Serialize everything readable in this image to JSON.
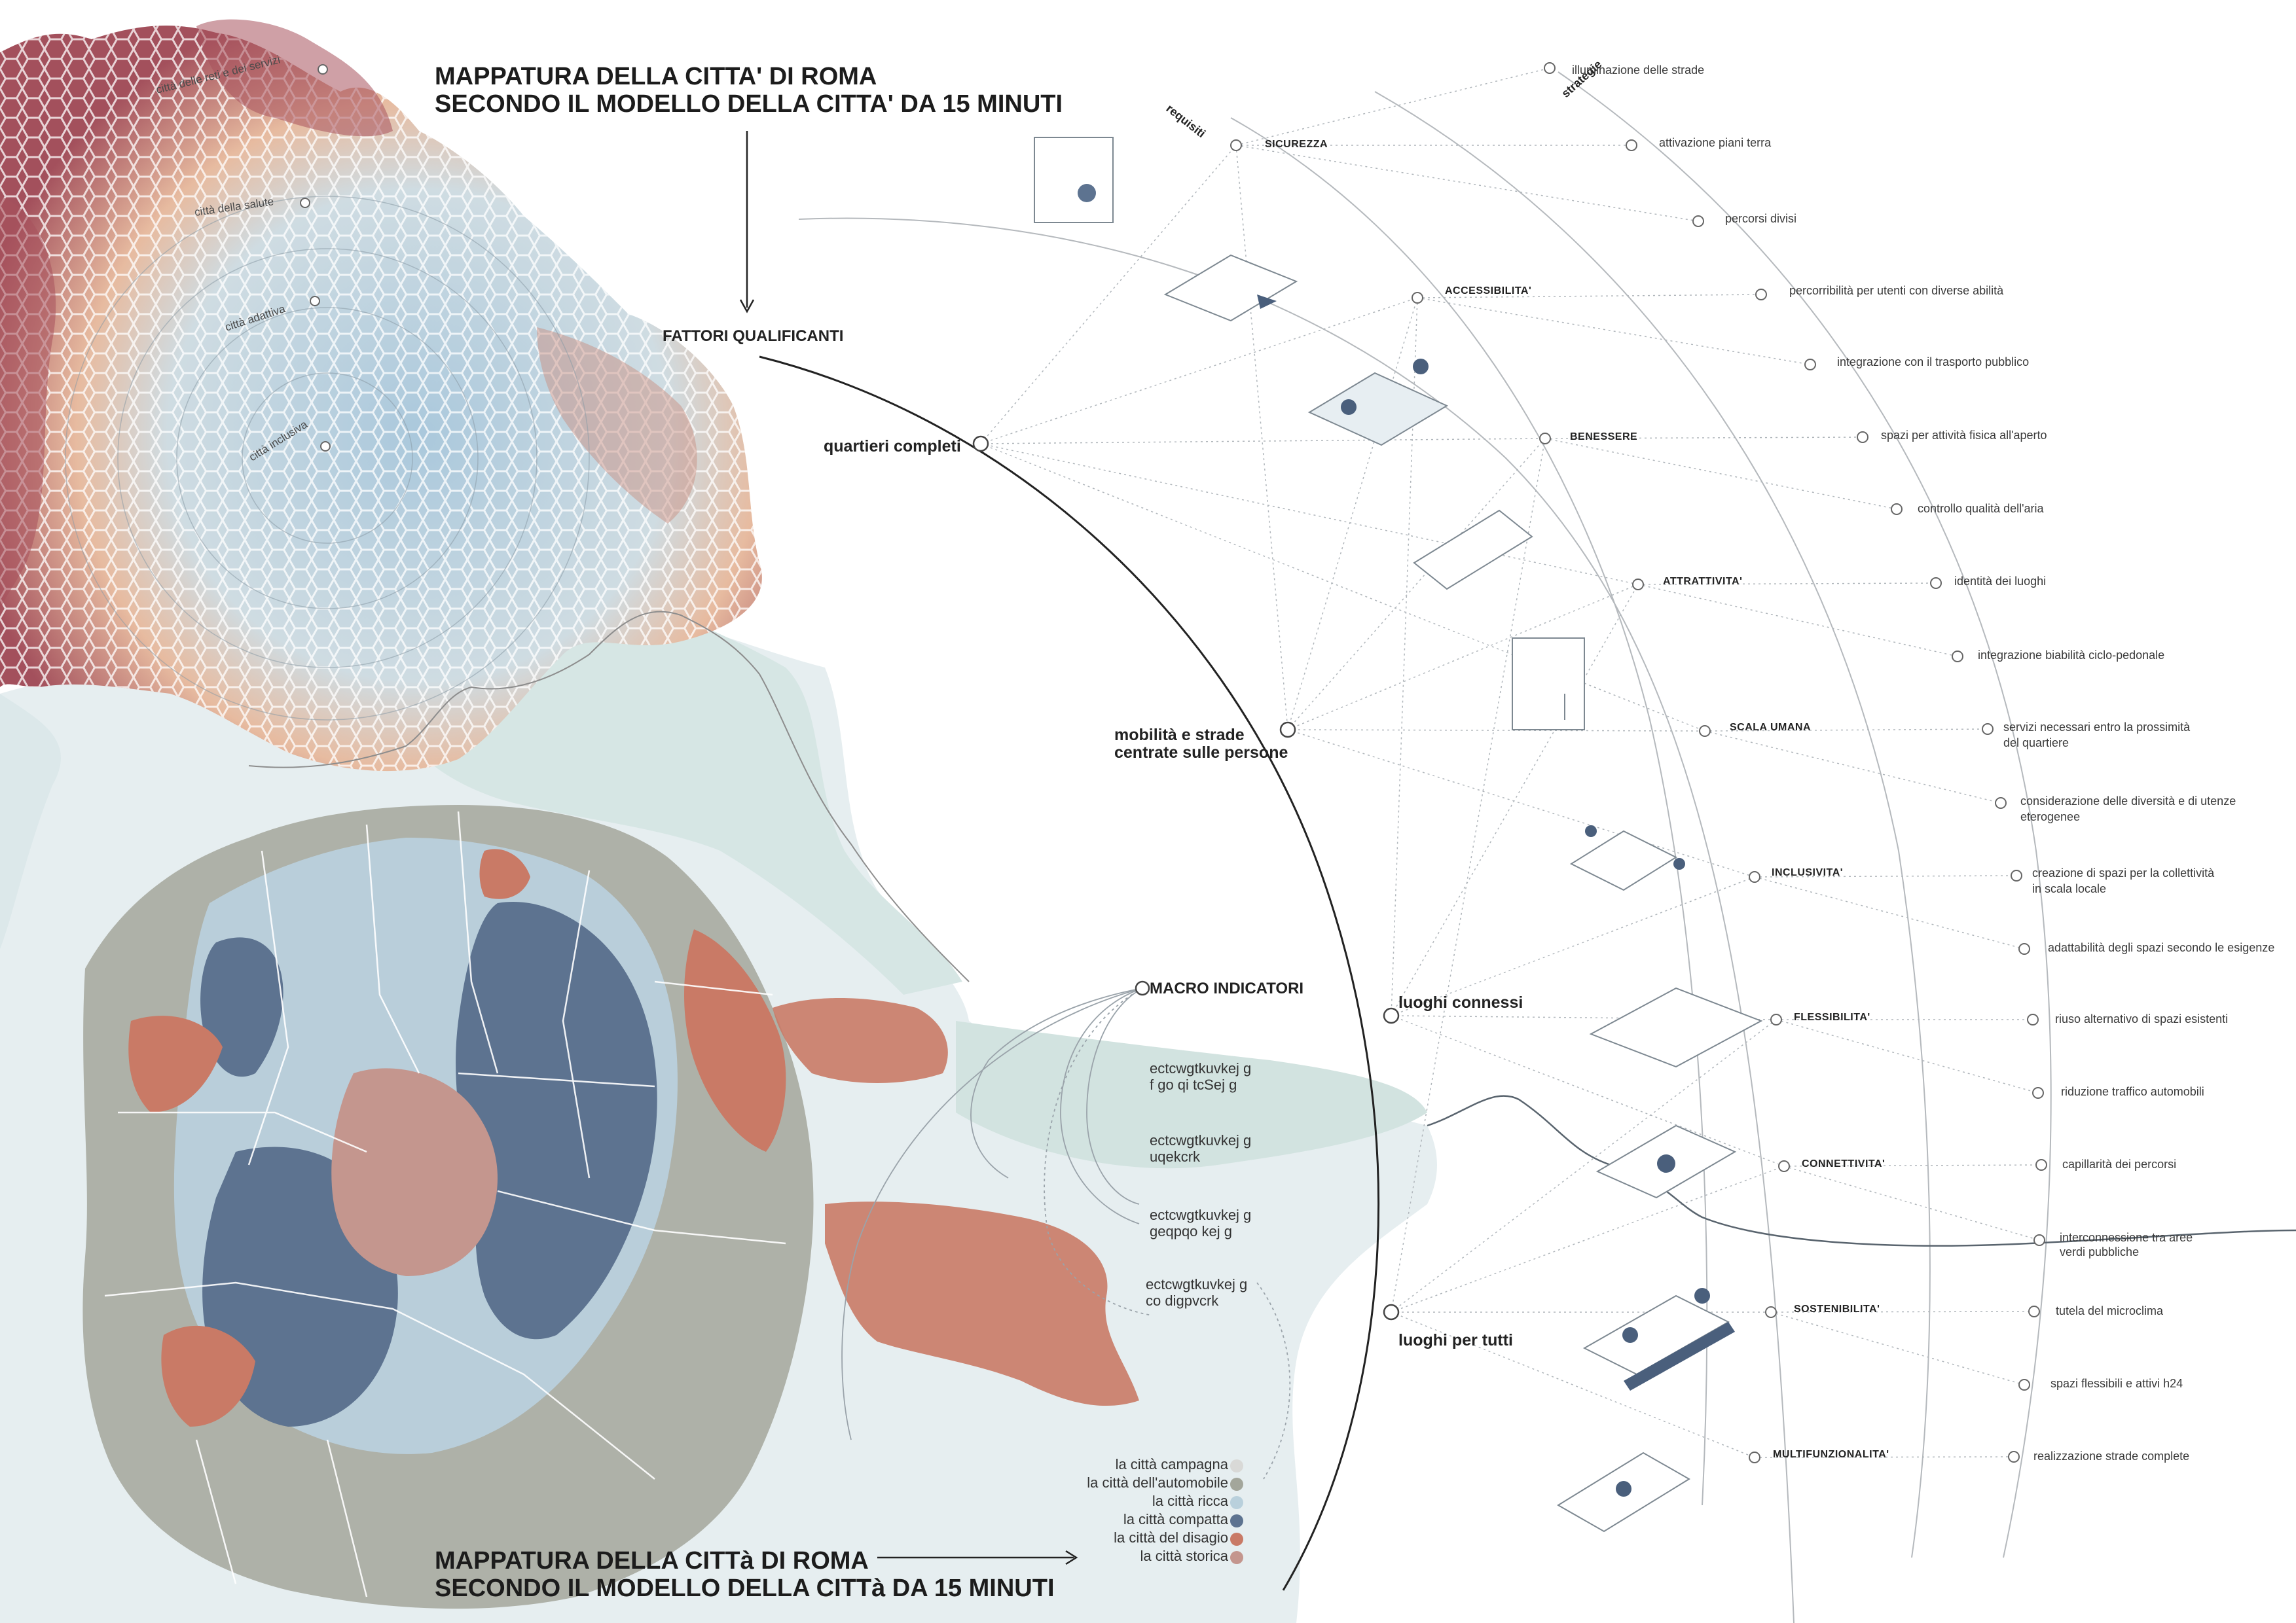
{
  "titles": {
    "top_line1": "MAPPATURA DELLA CITTA' DI ROMA",
    "top_line2": "SECONDO IL MODELLO DELLA CITTA' DA 15 MINUTI",
    "bottom_line1": "MAPPATURA DELLA CITTà DI ROMA",
    "bottom_line2": "SECONDO IL MODELLO DELLA CITTà DA 15 MINUTI"
  },
  "fattori_label": "FATTORI QUALIFICANTI",
  "axis_labels": {
    "requisiti": "requisiti",
    "strategie": "strategie"
  },
  "rings": [
    "città delle reti e dei servizi",
    "città della salute",
    "città adattiva",
    "città inclusiva"
  ],
  "factors": [
    "quartieri completi",
    "mobilità e strade\ncentrate sulle persone",
    "luoghi connessi",
    "luoghi per tutti"
  ],
  "requirements": [
    "SICUREZZA",
    "ACCESSIBILITA'",
    "BENESSERE",
    "ATTRATTIVITA'",
    "SCALA UMANA",
    "INCLUSIVITA'",
    "FLESSIBILITA'",
    "CONNETTIVITA'",
    "SOSTENIBILITA'",
    "MULTIFUNZIONALITA'"
  ],
  "strategies": [
    "illuminazione delle strade",
    "attivazione piani terra",
    "percorsi divisi",
    "percorribilità per utenti con diverse abilità",
    "integrazione con il trasporto pubblico",
    "spazi per attività fisica all'aperto",
    "controllo qualità dell'aria",
    "identità dei luoghi",
    "integrazione biabilità ciclo-pedonale",
    "servizi necessari entro la prossimità\ndel quartiere",
    "considerazione delle diversità e di utenze\neterogenee",
    "creazione di spazi per la collettività\nin scala locale",
    "adattabilità degli spazi secondo le esigenze",
    "riuso alternativo di spazi esistenti",
    "riduzione traffico automobili",
    "capillarità dei percorsi",
    "interconnessione tra aree\nverdi pubbliche",
    "tutela del microclima",
    "spazi flessibili e attivi h24",
    "realizzazione strade complete"
  ],
  "macro": {
    "title": "MACRO INDICATORI",
    "items": [
      "ectcwgtkuvkej g\nf go qi tcSej g",
      "ectcwgtkuvkej g\nuqekcrk",
      "ectcwgtkuvkej g\ngeqpqo kej g",
      "ectcwgtkuvkej g\nco digpvcrk"
    ]
  },
  "legend": [
    {
      "label": "la città campagna",
      "color": "#d9d9d7"
    },
    {
      "label": "la città dell'automobile",
      "color": "#a3a69b"
    },
    {
      "label": "la città ricca",
      "color": "#b9d0dc"
    },
    {
      "label": "la città compatta",
      "color": "#5d7390"
    },
    {
      "label": "la città del disagio",
      "color": "#c97a66"
    },
    {
      "label": "la città storica",
      "color": "#c4968e"
    }
  ],
  "colors": {
    "hex_blue": "#a9c6da",
    "hex_red": "#a8525c",
    "hex_peach": "#e8b59c",
    "line": "#9aa0a6",
    "dark_line": "#2a2a2a"
  }
}
